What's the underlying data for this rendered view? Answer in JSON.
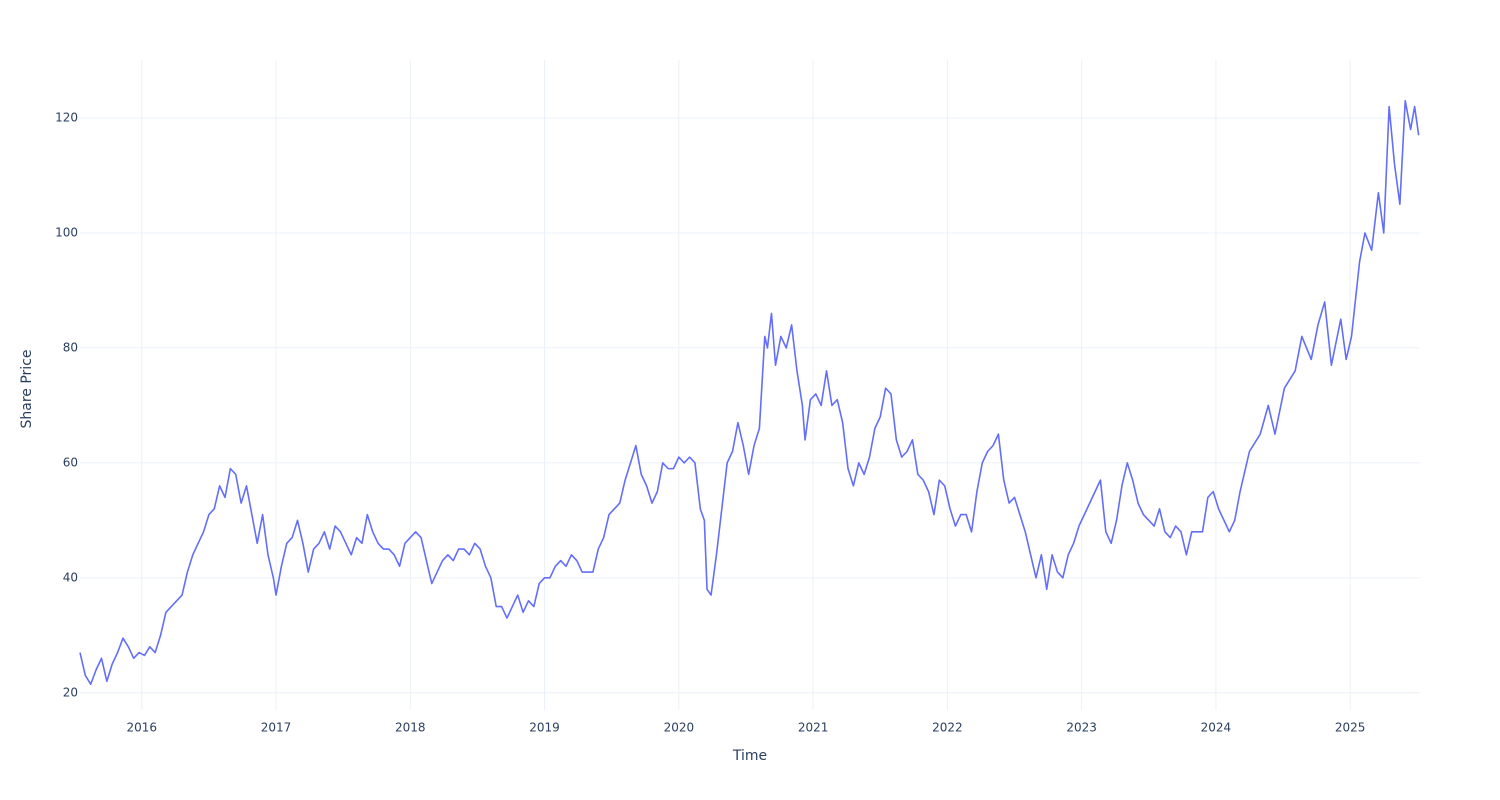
{
  "chart_data": {
    "type": "line",
    "x_label": "Time",
    "y_label": "Share Price",
    "xlim": [
      2015.54,
      2025.52
    ],
    "ylim": [
      17.0,
      130.1
    ],
    "xticks": [
      2016,
      2017,
      2018,
      2019,
      2020,
      2021,
      2022,
      2023,
      2024,
      2025
    ],
    "yticks": [
      20,
      40,
      60,
      80,
      100,
      120
    ],
    "grid": true,
    "color": "#636efa",
    "x": [
      2015.54,
      2015.58,
      2015.62,
      2015.66,
      2015.7,
      2015.74,
      2015.78,
      2015.82,
      2015.86,
      2015.9,
      2015.94,
      2015.98,
      2016.02,
      2016.06,
      2016.1,
      2016.14,
      2016.18,
      2016.22,
      2016.26,
      2016.3,
      2016.34,
      2016.38,
      2016.42,
      2016.46,
      2016.5,
      2016.54,
      2016.58,
      2016.62,
      2016.66,
      2016.7,
      2016.74,
      2016.78,
      2016.82,
      2016.86,
      2016.9,
      2016.94,
      2016.98,
      2017.0,
      2017.04,
      2017.08,
      2017.12,
      2017.16,
      2017.2,
      2017.24,
      2017.28,
      2017.32,
      2017.36,
      2017.4,
      2017.44,
      2017.48,
      2017.52,
      2017.56,
      2017.6,
      2017.64,
      2017.68,
      2017.72,
      2017.76,
      2017.8,
      2017.84,
      2017.88,
      2017.92,
      2017.96,
      2018.0,
      2018.04,
      2018.08,
      2018.12,
      2018.16,
      2018.2,
      2018.24,
      2018.28,
      2018.32,
      2018.36,
      2018.4,
      2018.44,
      2018.48,
      2018.52,
      2018.56,
      2018.6,
      2018.64,
      2018.68,
      2018.72,
      2018.76,
      2018.8,
      2018.84,
      2018.88,
      2018.92,
      2018.96,
      2019.0,
      2019.04,
      2019.08,
      2019.12,
      2019.16,
      2019.2,
      2019.24,
      2019.28,
      2019.32,
      2019.36,
      2019.4,
      2019.44,
      2019.48,
      2019.52,
      2019.56,
      2019.6,
      2019.64,
      2019.68,
      2019.72,
      2019.76,
      2019.8,
      2019.84,
      2019.88,
      2019.92,
      2019.96,
      2020.0,
      2020.04,
      2020.08,
      2020.12,
      2020.16,
      2020.19,
      2020.21,
      2020.24,
      2020.28,
      2020.32,
      2020.36,
      2020.4,
      2020.44,
      2020.48,
      2020.52,
      2020.56,
      2020.6,
      2020.62,
      2020.64,
      2020.66,
      2020.69,
      2020.72,
      2020.76,
      2020.8,
      2020.84,
      2020.88,
      2020.92,
      2020.94,
      2020.98,
      2021.02,
      2021.06,
      2021.1,
      2021.14,
      2021.18,
      2021.22,
      2021.26,
      2021.3,
      2021.34,
      2021.38,
      2021.42,
      2021.46,
      2021.5,
      2021.54,
      2021.58,
      2021.62,
      2021.66,
      2021.7,
      2021.74,
      2021.78,
      2021.82,
      2021.86,
      2021.9,
      2021.94,
      2021.98,
      2022.02,
      2022.06,
      2022.1,
      2022.14,
      2022.18,
      2022.22,
      2022.26,
      2022.3,
      2022.34,
      2022.38,
      2022.42,
      2022.46,
      2022.5,
      2022.54,
      2022.58,
      2022.62,
      2022.66,
      2022.7,
      2022.74,
      2022.78,
      2022.82,
      2022.86,
      2022.9,
      2022.94,
      2022.98,
      2023.02,
      2023.06,
      2023.1,
      2023.14,
      2023.18,
      2023.22,
      2023.26,
      2023.3,
      2023.34,
      2023.38,
      2023.42,
      2023.46,
      2023.5,
      2023.54,
      2023.58,
      2023.62,
      2023.66,
      2023.7,
      2023.74,
      2023.78,
      2023.82,
      2023.86,
      2023.9,
      2023.94,
      2023.98,
      2024.02,
      2024.06,
      2024.1,
      2024.14,
      2024.18,
      2024.25,
      2024.33,
      2024.39,
      2024.44,
      2024.51,
      2024.59,
      2024.64,
      2024.71,
      2024.76,
      2024.81,
      2024.86,
      2024.93,
      2024.97,
      2025.01,
      2025.07,
      2025.11,
      2025.16,
      2025.21,
      2025.25,
      2025.29,
      2025.33,
      2025.37,
      2025.41,
      2025.45,
      2025.48,
      2025.51
    ],
    "values": [
      27,
      23,
      21.5,
      24,
      26,
      22,
      25,
      27,
      29.5,
      28,
      26,
      27,
      26.5,
      28,
      27,
      30,
      34,
      35,
      36,
      37,
      41,
      44,
      46,
      48,
      51,
      52,
      56,
      54,
      59,
      58,
      53,
      56,
      51,
      46,
      51,
      44,
      40,
      37,
      42,
      46,
      47,
      50,
      46,
      41,
      45,
      46,
      48,
      45,
      49,
      48,
      46,
      44,
      47,
      46,
      51,
      48,
      46,
      45,
      45,
      44,
      42,
      46,
      47,
      48,
      47,
      43,
      39,
      41,
      43,
      44,
      43,
      45,
      45,
      44,
      46,
      45,
      42,
      40,
      35,
      35,
      33,
      35,
      37,
      34,
      36,
      35,
      39,
      40,
      40,
      42,
      43,
      42,
      44,
      43,
      41,
      41,
      41,
      45,
      47,
      51,
      52,
      53,
      57,
      60,
      63,
      58,
      56,
      53,
      55,
      60,
      59,
      59,
      61,
      60,
      61,
      60,
      52,
      50,
      38,
      37,
      44,
      52,
      60,
      62,
      67,
      63,
      58,
      63,
      66,
      74,
      82,
      80,
      86,
      77,
      82,
      80,
      84,
      76,
      70,
      64,
      71,
      72,
      70,
      76,
      70,
      71,
      67,
      59,
      56,
      60,
      58,
      61,
      66,
      68,
      73,
      72,
      64,
      61,
      62,
      64,
      58,
      57,
      55,
      51,
      57,
      56,
      52,
      49,
      51,
      51,
      48,
      55,
      60,
      62,
      63,
      65,
      57,
      53,
      54,
      51,
      48,
      44,
      40,
      44,
      38,
      44,
      41,
      40,
      44,
      46,
      49,
      51,
      53,
      55,
      57,
      48,
      46,
      50,
      56,
      60,
      57,
      53,
      51,
      50,
      49,
      52,
      48,
      47,
      49,
      48,
      44,
      48,
      48,
      48,
      54,
      55,
      52,
      50,
      48,
      50,
      55,
      62,
      65,
      70,
      65,
      73,
      76,
      82,
      78,
      84,
      88,
      77,
      85,
      78,
      82,
      95,
      100,
      97,
      107,
      100,
      122,
      112,
      105,
      123,
      118,
      122,
      117
    ]
  }
}
